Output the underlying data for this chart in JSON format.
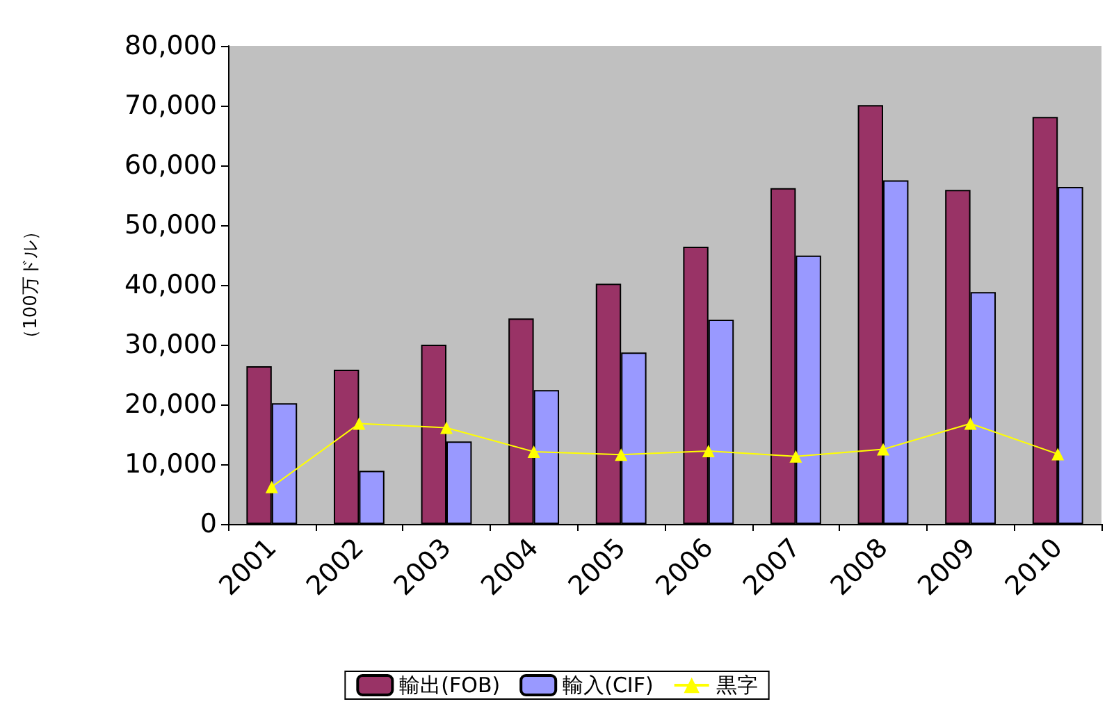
{
  "chart_data": {
    "type": "bar",
    "ylabel": "（100万ドル）",
    "categories": [
      "2001",
      "2002",
      "2003",
      "2004",
      "2005",
      "2006",
      "2007",
      "2008",
      "2009",
      "2010"
    ],
    "series": [
      {
        "name": "輸出(FOB)",
        "color": "#993366",
        "values": [
          26400,
          25800,
          30000,
          34400,
          40200,
          46400,
          56200,
          70100,
          55900,
          68100
        ]
      },
      {
        "name": "輸入(CIF)",
        "color": "#9999ff",
        "values": [
          20200,
          8900,
          13800,
          22400,
          28700,
          34200,
          44900,
          57500,
          38800,
          56400
        ]
      },
      {
        "name": "黒字",
        "type": "line",
        "color": "#ffff00",
        "marker": "triangle",
        "values": [
          6200,
          16800,
          16100,
          12100,
          11600,
          12200,
          11300,
          12500,
          16800,
          11700
        ]
      }
    ],
    "ylim": [
      0,
      80000
    ],
    "yticks": [
      0,
      {
        "value": 10000,
        "label": "10,000"
      },
      {
        "value": 20000,
        "label": "20,000"
      },
      {
        "value": 30000,
        "label": "30,000"
      },
      {
        "value": 40000,
        "label": "40,000"
      },
      {
        "value": 50000,
        "label": "50,000"
      },
      {
        "value": 60000,
        "label": "60,000"
      },
      {
        "value": 70000,
        "label": "70,000"
      },
      {
        "value": 80000,
        "label": "80,000"
      }
    ],
    "grid": false,
    "legend": "bottom"
  }
}
